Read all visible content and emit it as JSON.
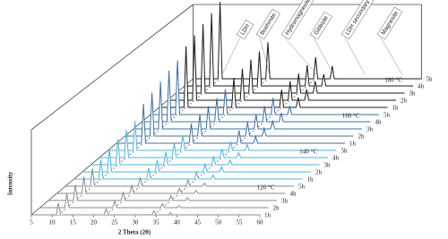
{
  "chart_data": {
    "type": "waterfall",
    "xlabel": "2 Theta (2θ)",
    "ylabel": "Intensity",
    "xlim": [
      5,
      60
    ],
    "xticks": [
      5,
      10,
      15,
      20,
      25,
      30,
      35,
      40,
      45,
      50,
      55,
      60
    ],
    "ylim": [
      0,
      100
    ],
    "x": [
      5,
      11,
      11.5,
      12,
      22.5,
      23,
      23.5,
      34,
      34.5,
      35,
      38,
      38.5,
      39,
      60
    ],
    "annotations": [
      "LDH",
      "Boehmite",
      "Hydromagnesite",
      "Gibbsite",
      "LDH secondary",
      "Magnesite"
    ],
    "groups": [
      {
        "label": "120 °C",
        "color": "#8a8a8a",
        "series": [
          {
            "name": "1h",
            "values": [
              0,
              0,
              12,
              0,
              0,
              6,
              0,
              0,
              4,
              0,
              0,
              2,
              0,
              0
            ]
          },
          {
            "name": "2h",
            "values": [
              0,
              0,
              14,
              0,
              0,
              7,
              0,
              0,
              4,
              0,
              0,
              2,
              0,
              0
            ]
          },
          {
            "name": "3h",
            "values": [
              0,
              0,
              16,
              0,
              0,
              8,
              0,
              0,
              5,
              0,
              0,
              3,
              0,
              0
            ]
          },
          {
            "name": "4h",
            "values": [
              0,
              0,
              17,
              0,
              0,
              8,
              0,
              0,
              5,
              0,
              0,
              3,
              0,
              0
            ]
          },
          {
            "name": "5h",
            "values": [
              0,
              0,
              18,
              0,
              0,
              9,
              0,
              0,
              6,
              0,
              0,
              3,
              0,
              0
            ]
          }
        ]
      },
      {
        "label": "140 °C",
        "color": "#4db3e0",
        "series": [
          {
            "name": "1h",
            "values": [
              0,
              0,
              20,
              0,
              0,
              11,
              0,
              0,
              7,
              0,
              0,
              4,
              0,
              0
            ]
          },
          {
            "name": "2h",
            "values": [
              0,
              0,
              23,
              0,
              0,
              12,
              0,
              0,
              8,
              0,
              0,
              5,
              0,
              0
            ]
          },
          {
            "name": "3h",
            "values": [
              0,
              0,
              26,
              0,
              0,
              13,
              0,
              0,
              8,
              0,
              0,
              5,
              0,
              0
            ]
          },
          {
            "name": "4h",
            "values": [
              0,
              0,
              28,
              0,
              0,
              14,
              0,
              0,
              9,
              0,
              0,
              5,
              0,
              0
            ]
          },
          {
            "name": "5h",
            "values": [
              0,
              0,
              30,
              0,
              0,
              15,
              0,
              0,
              9,
              0,
              0,
              6,
              0,
              0
            ]
          }
        ]
      },
      {
        "label": "160 °C",
        "color": "#3d6fa3",
        "series": [
          {
            "name": "1h",
            "values": [
              0,
              0,
              40,
              0,
              0,
              20,
              0,
              0,
              13,
              0,
              0,
              7,
              0,
              0
            ]
          },
          {
            "name": "2h",
            "values": [
              0,
              0,
              44,
              0,
              0,
              22,
              0,
              0,
              14,
              0,
              0,
              8,
              0,
              0
            ]
          },
          {
            "name": "3h",
            "values": [
              0,
              0,
              48,
              0,
              0,
              23,
              0,
              0,
              15,
              0,
              0,
              8,
              0,
              0
            ]
          },
          {
            "name": "4h",
            "values": [
              0,
              0,
              52,
              0,
              0,
              24,
              0,
              0,
              16,
              0,
              0,
              9,
              0,
              0
            ]
          },
          {
            "name": "5h",
            "values": [
              0,
              0,
              55,
              0,
              0,
              26,
              0,
              0,
              17,
              0,
              0,
              9,
              0,
              0
            ]
          }
        ]
      },
      {
        "label": "180 °C",
        "color": "#1a1a1a",
        "series": [
          {
            "name": "1h",
            "values": [
              0,
              0,
              62,
              0,
              0,
              30,
              0,
              0,
              18,
              0,
              0,
              10,
              0,
              0
            ]
          },
          {
            "name": "2h",
            "values": [
              0,
              0,
              66,
              0,
              0,
              32,
              0,
              0,
              19,
              0,
              0,
              11,
              0,
              0
            ]
          },
          {
            "name": "3h",
            "values": [
              0,
              0,
              70,
              0,
              0,
              34,
              0,
              0,
              20,
              0,
              0,
              12,
              0,
              0
            ]
          },
          {
            "name": "4h",
            "values": [
              0,
              0,
              74,
              0,
              0,
              35,
              0,
              0,
              21,
              0,
              0,
              12,
              0,
              0
            ]
          },
          {
            "name": "5h",
            "values": [
              0,
              0,
              78,
              0,
              0,
              37,
              0,
              0,
              22,
              0,
              0,
              13,
              0,
              0
            ]
          }
        ]
      }
    ]
  }
}
